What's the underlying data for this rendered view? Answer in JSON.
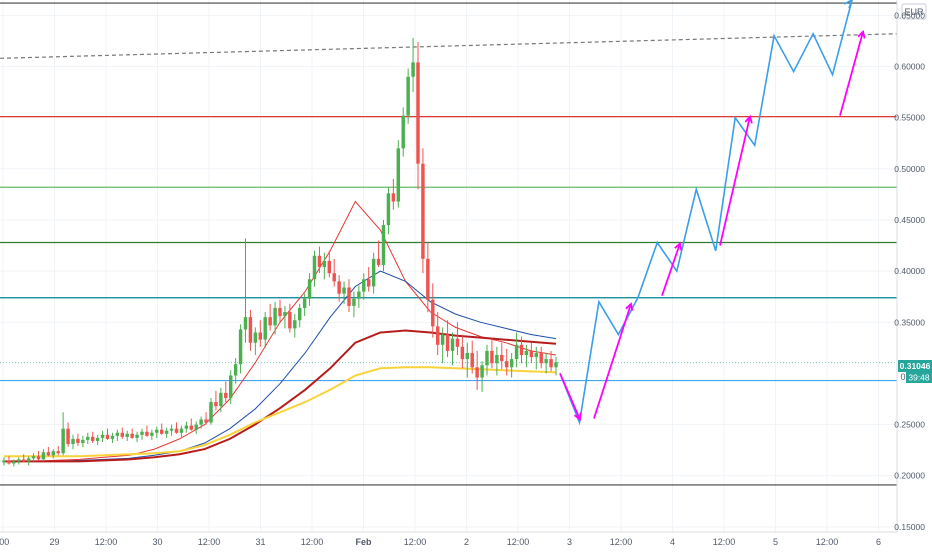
{
  "chart_data": {
    "type": "candlestick",
    "currency": "EUR",
    "y_axis": {
      "ticks": [
        "0.65000",
        "0.60000",
        "0.55000",
        "0.50000",
        "0.45000",
        "0.40000",
        "0.35000",
        "0.25000",
        "0.20000",
        "0.15000"
      ],
      "tick_values": [
        0.65,
        0.6,
        0.55,
        0.5,
        0.45,
        0.4,
        0.35,
        0.25,
        0.2,
        0.15
      ],
      "ylim": [
        0.145,
        0.665
      ]
    },
    "x_axis": {
      "tick_labels": [
        ":00",
        "29",
        "12:00",
        "30",
        "12:00",
        "31",
        "12:00",
        "Feb",
        "12:00",
        "2",
        "12:00",
        "3",
        "12:00",
        "4",
        "12:00",
        "5",
        "12:00",
        "6"
      ],
      "bold_labels": [
        "Feb"
      ]
    },
    "price_badge": {
      "value": "0.31046",
      "partial_value": "0",
      "countdown": "39:48",
      "price": 0.3105
    },
    "horizontal_levels": [
      {
        "value": 0.662,
        "color": "#444444"
      },
      {
        "value": 0.551,
        "color": "#e53935"
      },
      {
        "value": 0.482,
        "color": "#66bb6a"
      },
      {
        "value": 0.428,
        "color": "#2e7d32"
      },
      {
        "value": 0.374,
        "color": "#00838f"
      },
      {
        "value": 0.293,
        "color": "#42a5f5"
      },
      {
        "value": 0.191,
        "color": "#444444"
      }
    ],
    "trendline": {
      "from": [
        0,
        0.608
      ],
      "to": [
        1,
        0.632
      ],
      "style": "dashed",
      "color": "#777777"
    },
    "candles_ohlc": [
      [
        0.213,
        0.218,
        0.21,
        0.215
      ],
      [
        0.215,
        0.219,
        0.211,
        0.212
      ],
      [
        0.212,
        0.216,
        0.209,
        0.214
      ],
      [
        0.214,
        0.218,
        0.211,
        0.216
      ],
      [
        0.216,
        0.221,
        0.213,
        0.214
      ],
      [
        0.214,
        0.219,
        0.21,
        0.217
      ],
      [
        0.217,
        0.222,
        0.214,
        0.219
      ],
      [
        0.219,
        0.224,
        0.215,
        0.216
      ],
      [
        0.216,
        0.226,
        0.214,
        0.223
      ],
      [
        0.223,
        0.228,
        0.219,
        0.22
      ],
      [
        0.22,
        0.226,
        0.217,
        0.224
      ],
      [
        0.224,
        0.229,
        0.22,
        0.222
      ],
      [
        0.222,
        0.262,
        0.22,
        0.246
      ],
      [
        0.246,
        0.252,
        0.228,
        0.231
      ],
      [
        0.231,
        0.24,
        0.226,
        0.236
      ],
      [
        0.236,
        0.241,
        0.229,
        0.232
      ],
      [
        0.232,
        0.239,
        0.228,
        0.235
      ],
      [
        0.235,
        0.242,
        0.231,
        0.238
      ],
      [
        0.238,
        0.243,
        0.232,
        0.234
      ],
      [
        0.234,
        0.24,
        0.23,
        0.237
      ],
      [
        0.237,
        0.244,
        0.233,
        0.24
      ],
      [
        0.24,
        0.246,
        0.235,
        0.236
      ],
      [
        0.236,
        0.242,
        0.232,
        0.239
      ],
      [
        0.239,
        0.245,
        0.234,
        0.242
      ],
      [
        0.242,
        0.247,
        0.236,
        0.238
      ],
      [
        0.238,
        0.244,
        0.234,
        0.241
      ],
      [
        0.241,
        0.246,
        0.236,
        0.237
      ],
      [
        0.237,
        0.243,
        0.233,
        0.24
      ],
      [
        0.24,
        0.246,
        0.235,
        0.243
      ],
      [
        0.243,
        0.249,
        0.238,
        0.239
      ],
      [
        0.239,
        0.245,
        0.235,
        0.242
      ],
      [
        0.242,
        0.248,
        0.237,
        0.245
      ],
      [
        0.245,
        0.251,
        0.24,
        0.241
      ],
      [
        0.241,
        0.247,
        0.237,
        0.244
      ],
      [
        0.244,
        0.25,
        0.239,
        0.246
      ],
      [
        0.246,
        0.252,
        0.241,
        0.242
      ],
      [
        0.242,
        0.249,
        0.238,
        0.246
      ],
      [
        0.246,
        0.253,
        0.242,
        0.249
      ],
      [
        0.249,
        0.256,
        0.244,
        0.245
      ],
      [
        0.245,
        0.253,
        0.241,
        0.25
      ],
      [
        0.25,
        0.258,
        0.246,
        0.255
      ],
      [
        0.255,
        0.262,
        0.25,
        0.252
      ],
      [
        0.252,
        0.276,
        0.25,
        0.272
      ],
      [
        0.272,
        0.283,
        0.264,
        0.268
      ],
      [
        0.268,
        0.286,
        0.262,
        0.281
      ],
      [
        0.281,
        0.292,
        0.272,
        0.276
      ],
      [
        0.276,
        0.303,
        0.27,
        0.298
      ],
      [
        0.298,
        0.315,
        0.29,
        0.309
      ],
      [
        0.309,
        0.348,
        0.3,
        0.343
      ],
      [
        0.343,
        0.432,
        0.33,
        0.355
      ],
      [
        0.355,
        0.362,
        0.322,
        0.33
      ],
      [
        0.33,
        0.345,
        0.318,
        0.34
      ],
      [
        0.34,
        0.352,
        0.326,
        0.333
      ],
      [
        0.333,
        0.36,
        0.325,
        0.355
      ],
      [
        0.355,
        0.368,
        0.342,
        0.347
      ],
      [
        0.347,
        0.37,
        0.338,
        0.364
      ],
      [
        0.364,
        0.372,
        0.35,
        0.356
      ],
      [
        0.356,
        0.366,
        0.344,
        0.36
      ],
      [
        0.36,
        0.368,
        0.34,
        0.344
      ],
      [
        0.344,
        0.358,
        0.335,
        0.352
      ],
      [
        0.352,
        0.368,
        0.345,
        0.364
      ],
      [
        0.364,
        0.378,
        0.356,
        0.373
      ],
      [
        0.373,
        0.398,
        0.366,
        0.392
      ],
      [
        0.392,
        0.42,
        0.385,
        0.415
      ],
      [
        0.415,
        0.424,
        0.398,
        0.404
      ],
      [
        0.404,
        0.418,
        0.392,
        0.41
      ],
      [
        0.41,
        0.42,
        0.394,
        0.398
      ],
      [
        0.398,
        0.412,
        0.385,
        0.39
      ],
      [
        0.39,
        0.396,
        0.37,
        0.378
      ],
      [
        0.378,
        0.39,
        0.368,
        0.384
      ],
      [
        0.384,
        0.392,
        0.36,
        0.366
      ],
      [
        0.366,
        0.38,
        0.355,
        0.373
      ],
      [
        0.373,
        0.386,
        0.364,
        0.38
      ],
      [
        0.38,
        0.398,
        0.372,
        0.392
      ],
      [
        0.392,
        0.404,
        0.38,
        0.385
      ],
      [
        0.385,
        0.418,
        0.378,
        0.412
      ],
      [
        0.412,
        0.43,
        0.404,
        0.406
      ],
      [
        0.406,
        0.45,
        0.4,
        0.445
      ],
      [
        0.445,
        0.482,
        0.436,
        0.476
      ],
      [
        0.476,
        0.49,
        0.46,
        0.468
      ],
      [
        0.468,
        0.528,
        0.462,
        0.52
      ],
      [
        0.52,
        0.56,
        0.512,
        0.552
      ],
      [
        0.552,
        0.598,
        0.544,
        0.59
      ],
      [
        0.59,
        0.628,
        0.575,
        0.604
      ],
      [
        0.604,
        0.624,
        0.48,
        0.505
      ],
      [
        0.505,
        0.52,
        0.398,
        0.412
      ],
      [
        0.412,
        0.428,
        0.36,
        0.372
      ],
      [
        0.372,
        0.388,
        0.335,
        0.346
      ],
      [
        0.346,
        0.36,
        0.318,
        0.328
      ],
      [
        0.328,
        0.345,
        0.31,
        0.338
      ],
      [
        0.338,
        0.352,
        0.316,
        0.322
      ],
      [
        0.322,
        0.34,
        0.308,
        0.334
      ],
      [
        0.334,
        0.35,
        0.318,
        0.326
      ],
      [
        0.326,
        0.338,
        0.305,
        0.314
      ],
      [
        0.314,
        0.33,
        0.296,
        0.32
      ],
      [
        0.32,
        0.332,
        0.3,
        0.306
      ],
      [
        0.306,
        0.322,
        0.284,
        0.296
      ],
      [
        0.296,
        0.312,
        0.282,
        0.308
      ],
      [
        0.308,
        0.328,
        0.298,
        0.322
      ],
      [
        0.322,
        0.334,
        0.305,
        0.31
      ],
      [
        0.31,
        0.326,
        0.298,
        0.318
      ],
      [
        0.318,
        0.33,
        0.304,
        0.312
      ],
      [
        0.312,
        0.324,
        0.298,
        0.306
      ],
      [
        0.306,
        0.32,
        0.296,
        0.314
      ],
      [
        0.314,
        0.34,
        0.306,
        0.328
      ],
      [
        0.328,
        0.336,
        0.31,
        0.318
      ],
      [
        0.318,
        0.328,
        0.306,
        0.322
      ],
      [
        0.322,
        0.33,
        0.31,
        0.316
      ],
      [
        0.316,
        0.326,
        0.304,
        0.32
      ],
      [
        0.32,
        0.326,
        0.305,
        0.31
      ],
      [
        0.31,
        0.32,
        0.3,
        0.314
      ],
      [
        0.314,
        0.322,
        0.302,
        0.306
      ],
      [
        0.306,
        0.316,
        0.298,
        0.311
      ]
    ],
    "moving_averages": [
      {
        "color": "#e53935",
        "width": 1,
        "values": [
          0.214,
          0.214,
          0.215,
          0.216,
          0.218,
          0.22,
          0.226,
          0.236,
          0.25,
          0.275,
          0.31,
          0.35,
          0.38,
          0.42,
          0.468,
          0.44,
          0.39,
          0.36,
          0.345,
          0.336,
          0.33,
          0.322,
          0.318
        ]
      },
      {
        "color": "#1e4fa8",
        "width": 1,
        "values": [
          0.214,
          0.214,
          0.214,
          0.215,
          0.216,
          0.217,
          0.22,
          0.224,
          0.232,
          0.246,
          0.265,
          0.29,
          0.32,
          0.355,
          0.385,
          0.4,
          0.39,
          0.37,
          0.358,
          0.35,
          0.344,
          0.338,
          0.334
        ]
      },
      {
        "color": "#b71c1c",
        "width": 2,
        "values": [
          0.214,
          0.214,
          0.214,
          0.214,
          0.215,
          0.216,
          0.218,
          0.221,
          0.226,
          0.236,
          0.25,
          0.266,
          0.284,
          0.305,
          0.33,
          0.34,
          0.342,
          0.34,
          0.337,
          0.335,
          0.333,
          0.331,
          0.329
        ]
      },
      {
        "color": "#f9d33b",
        "width": 2,
        "values": [
          0.219,
          0.219,
          0.219,
          0.219,
          0.22,
          0.221,
          0.222,
          0.224,
          0.23,
          0.24,
          0.252,
          0.262,
          0.272,
          0.284,
          0.298,
          0.305,
          0.306,
          0.306,
          0.305,
          0.304,
          0.303,
          0.302,
          0.301
        ]
      }
    ],
    "projection_blue": [
      0.3,
      0.252,
      0.37,
      0.338,
      0.374,
      0.428,
      0.4,
      0.48,
      0.42,
      0.55,
      0.523,
      0.63,
      0.595,
      0.632,
      0.592,
      0.665
    ],
    "projection_arrows_magenta": [
      {
        "from": 0.3,
        "to": 0.255
      },
      {
        "from": 0.256,
        "to": 0.368
      },
      {
        "from": 0.376,
        "to": 0.427
      },
      {
        "from": 0.425,
        "to": 0.551
      },
      {
        "from": 0.552,
        "to": 0.634
      }
    ],
    "colors": {
      "up": "#26a69a",
      "down": "#ef5350",
      "up_body": "#4caf50",
      "blue_path": "#3a9ee8",
      "magenta": "#ff00ff",
      "grid": "#f0f3f7",
      "axis_text": "#505a6a"
    }
  }
}
